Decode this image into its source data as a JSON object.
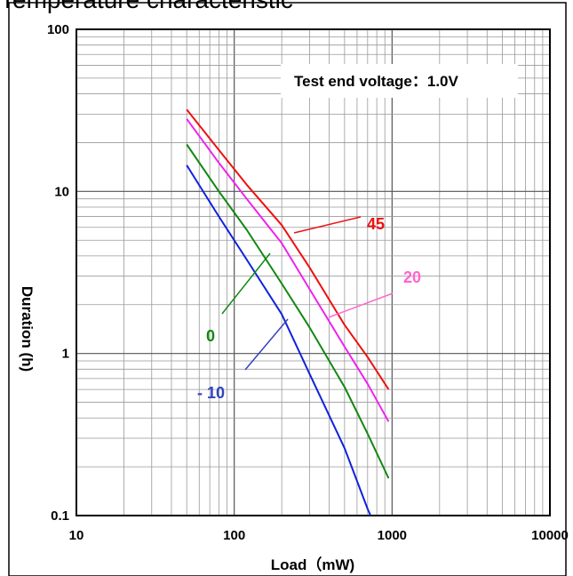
{
  "page": {
    "title": "Temperature characteristic"
  },
  "chart_data": {
    "type": "line",
    "title": "",
    "xlabel": "Load（mW)",
    "ylabel": "Duration (h)",
    "x_scale": "log",
    "y_scale": "log",
    "xlim": [
      10,
      10000
    ],
    "ylim": [
      0.1,
      100
    ],
    "grid": true,
    "x_ticks": [
      {
        "value": 10,
        "label": "10"
      },
      {
        "value": 100,
        "label": "100"
      },
      {
        "value": 1000,
        "label": "1000"
      },
      {
        "value": 10000,
        "label": "10000"
      }
    ],
    "y_ticks": [
      {
        "value": 0.1,
        "label": "0.1"
      },
      {
        "value": 1,
        "label": "1"
      },
      {
        "value": 10,
        "label": "10"
      },
      {
        "value": 100,
        "label": "100"
      }
    ],
    "annotation": "Test end voltage：1.0V",
    "series": [
      {
        "label": "45",
        "color": "#ee1111",
        "points": [
          [
            50,
            32
          ],
          [
            80,
            18
          ],
          [
            120,
            11
          ],
          [
            200,
            6.2
          ],
          [
            300,
            3.4
          ],
          [
            500,
            1.5
          ],
          [
            700,
            0.95
          ],
          [
            950,
            0.6
          ]
        ]
      },
      {
        "label": "20",
        "color": "#ee22ee",
        "points": [
          [
            50,
            28
          ],
          [
            80,
            15
          ],
          [
            120,
            9
          ],
          [
            200,
            4.8
          ],
          [
            300,
            2.5
          ],
          [
            500,
            1.1
          ],
          [
            700,
            0.65
          ],
          [
            950,
            0.38
          ]
        ]
      },
      {
        "label": "0",
        "color": "#118811",
        "points": [
          [
            50,
            19.5
          ],
          [
            80,
            10
          ],
          [
            120,
            5.8
          ],
          [
            200,
            2.7
          ],
          [
            300,
            1.45
          ],
          [
            500,
            0.62
          ],
          [
            700,
            0.32
          ],
          [
            950,
            0.17
          ]
        ]
      },
      {
        "label": "- 10",
        "color": "#1122dd",
        "points": [
          [
            50,
            14.5
          ],
          [
            80,
            7
          ],
          [
            120,
            3.8
          ],
          [
            200,
            1.75
          ],
          [
            300,
            0.75
          ],
          [
            500,
            0.26
          ],
          [
            700,
            0.11
          ],
          [
            730,
            0.1
          ]
        ]
      }
    ]
  }
}
